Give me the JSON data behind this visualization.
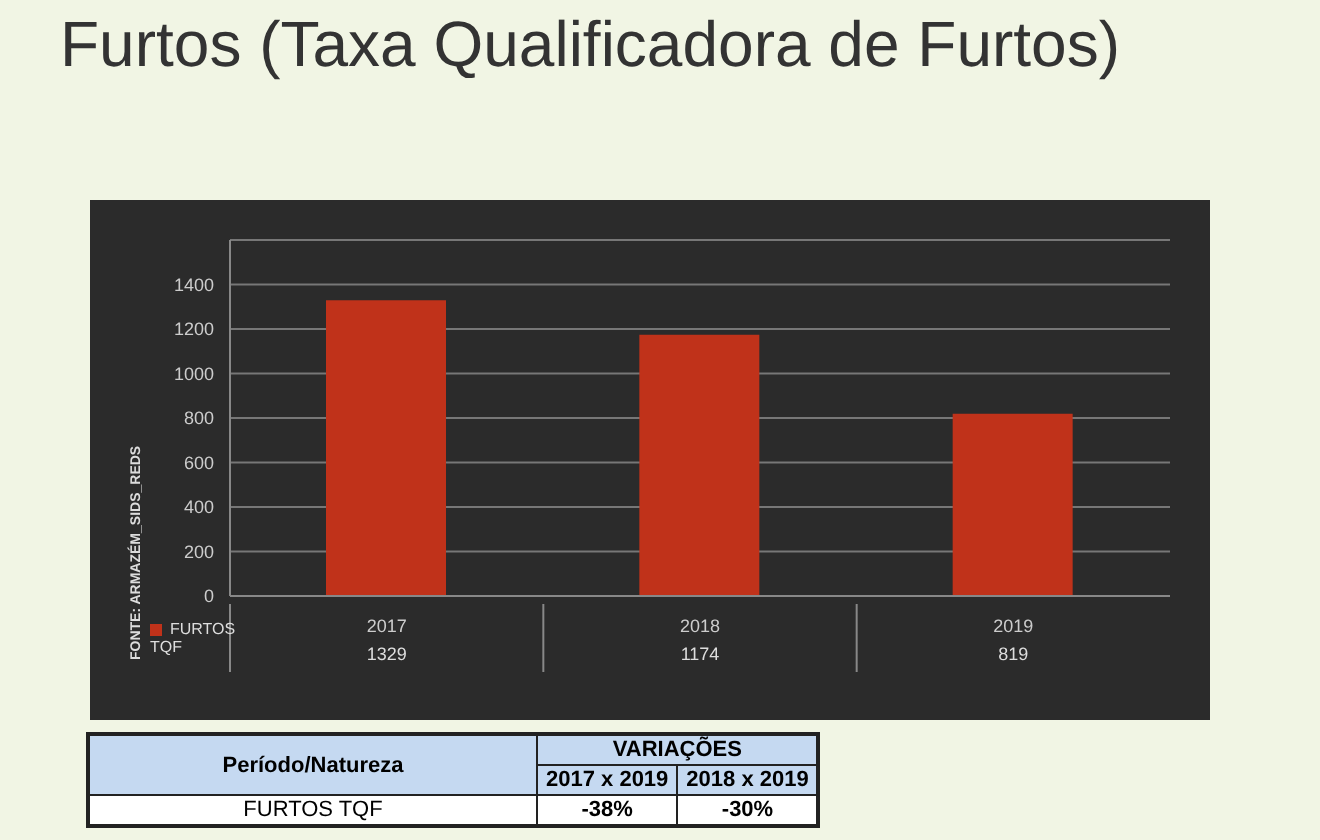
{
  "chart_data": {
    "type": "bar",
    "title": "Furtos (Taxa Qualificadora de Furtos)",
    "categories": [
      "2017",
      "2018",
      "2019"
    ],
    "series": [
      {
        "name": "FURTOS TQF",
        "color": "#c0321a",
        "values": [
          1329,
          1174,
          819
        ]
      }
    ],
    "ylim": [
      0,
      1600
    ],
    "yticks": [
      0,
      200,
      400,
      600,
      800,
      1000,
      1200,
      1400,
      {
        "value": 1600,
        "label": null
      }
    ],
    "grid": "y",
    "legend": "bottom",
    "data_labels": true,
    "annotations": [
      "FONTE: ARMAZÉM_SIDS_REDS",
      "Período/Natureza",
      "VARIAÇÕES",
      "2017 x 2019",
      "2018 x 2019",
      "FURTOS TQF",
      "-38%",
      "-30%"
    ]
  }
}
